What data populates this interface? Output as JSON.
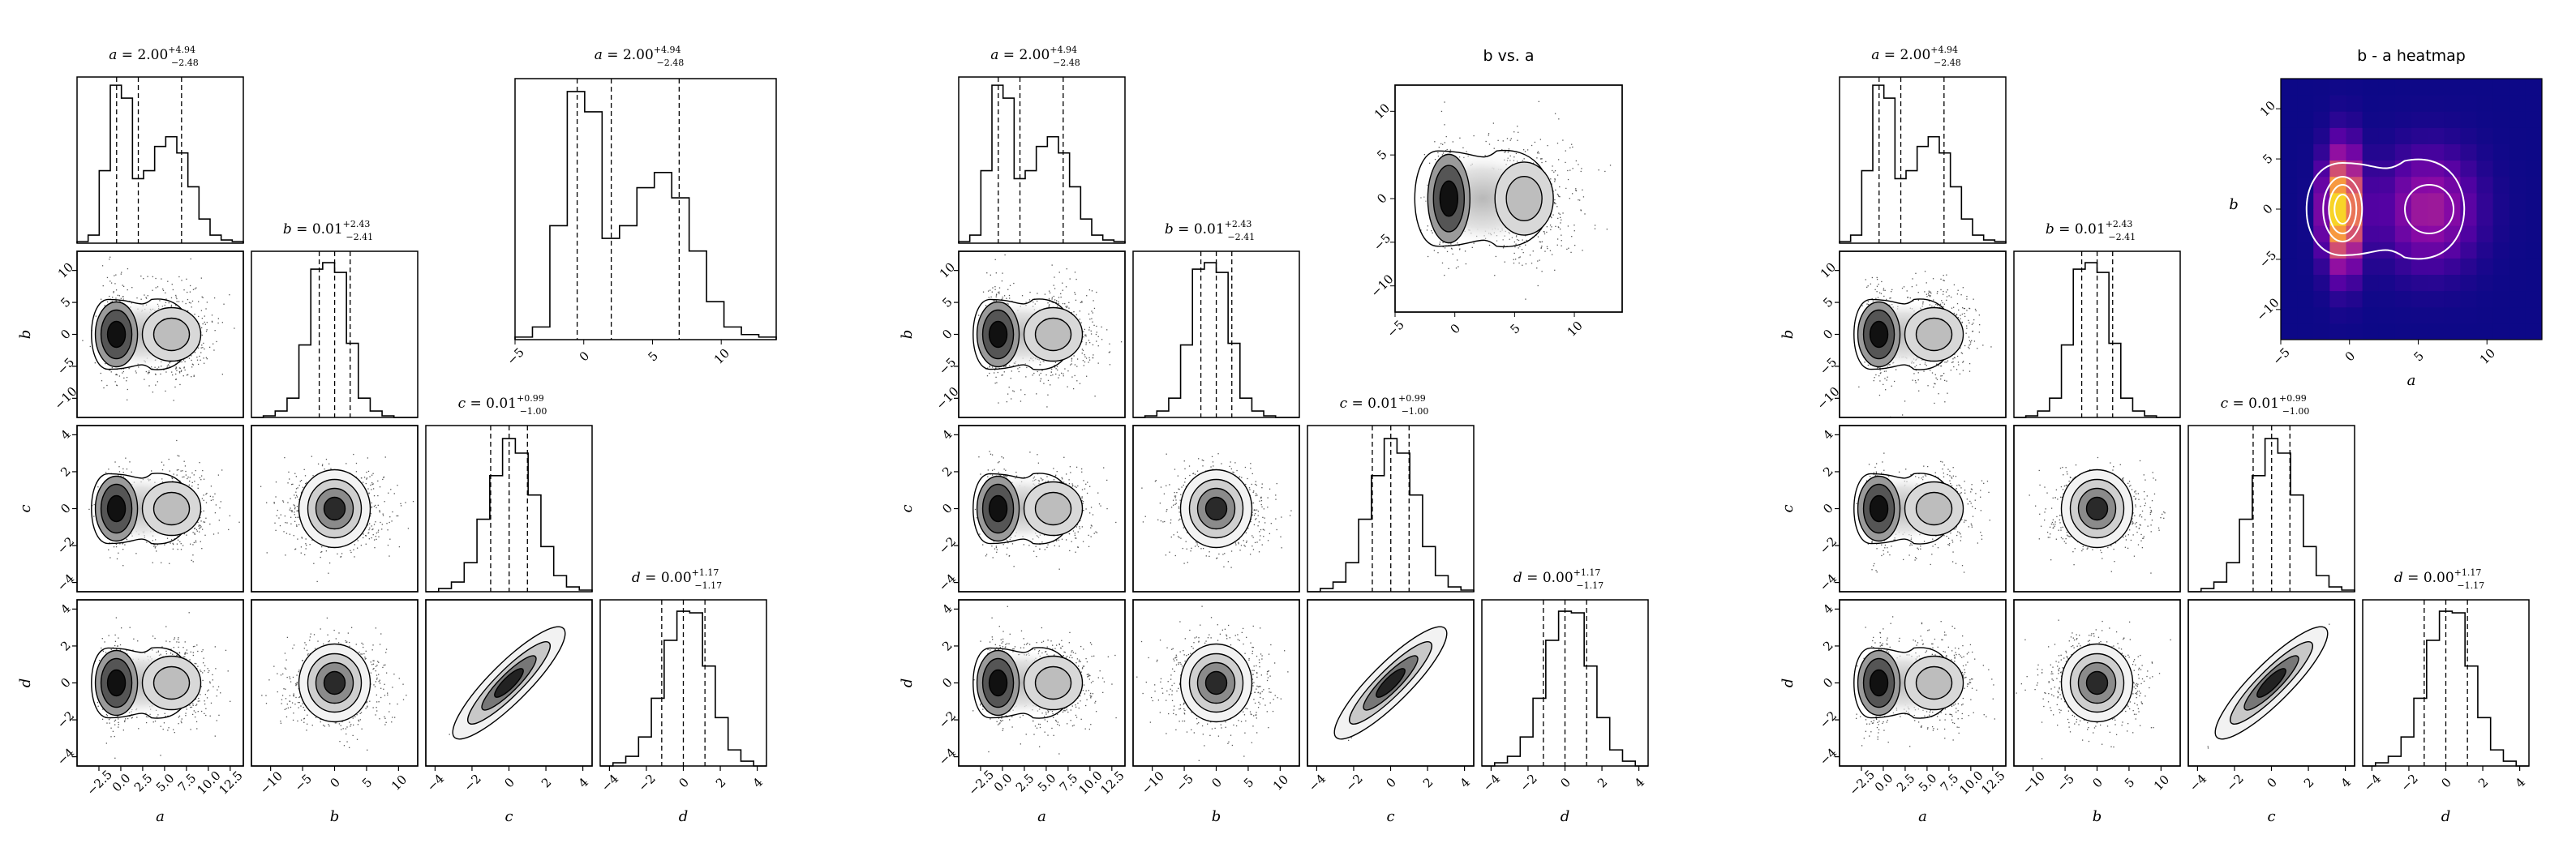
{
  "chart_data": [
    {
      "type": "corner",
      "panel": "left",
      "parameters": [
        "a",
        "b",
        "c",
        "d"
      ],
      "axis_ranges": {
        "a": [
          -5,
          14
        ],
        "b": [
          -13,
          13
        ],
        "c": [
          -4.5,
          4.5
        ],
        "d": [
          -4.5,
          4.5
        ]
      },
      "ticks": {
        "a": [
          "−2.5",
          "0.0",
          "2.5",
          "5.0",
          "7.5",
          "10.0",
          "12.5"
        ],
        "b": [
          "−10",
          "−5",
          "0",
          "5",
          "10"
        ],
        "c": [
          "−4",
          "−2",
          "0",
          "2",
          "4"
        ],
        "d": [
          "−4",
          "−2",
          "0",
          "2",
          "4"
        ]
      },
      "titles": [
        "a = 2.00 +4.94 −2.48",
        "b = 0.01 +2.43 −2.41",
        "c = 0.01 +0.99 −1.00",
        "d = 0.00 +1.17 −1.17"
      ],
      "quantiles": {
        "a": [
          -0.48,
          2.0,
          6.94
        ],
        "b": [
          -2.4,
          0.01,
          2.44
        ],
        "c": [
          -0.99,
          0.01,
          1.0
        ],
        "d": [
          -1.17,
          0.0,
          1.17
        ]
      },
      "marginals": {
        "a": {
          "bins": [
            -5,
            14
          ],
          "counts": [
            0.01,
            0.05,
            0.45,
            0.98,
            0.9,
            0.4,
            0.45,
            0.6,
            0.66,
            0.56,
            0.35,
            0.15,
            0.05,
            0.02,
            0.01
          ]
        },
        "b": {
          "bins": [
            -13,
            13
          ],
          "counts": [
            0.0,
            0.01,
            0.04,
            0.12,
            0.45,
            0.92,
            0.96,
            0.9,
            0.46,
            0.12,
            0.04,
            0.01,
            0.0,
            0.0
          ]
        },
        "c": {
          "bins": [
            -4.5,
            4.5
          ],
          "counts": [
            0.0,
            0.02,
            0.06,
            0.18,
            0.45,
            0.72,
            0.95,
            0.86,
            0.6,
            0.28,
            0.1,
            0.03,
            0.01
          ]
        },
        "d": {
          "bins": [
            -4.5,
            4.5
          ],
          "counts": [
            0.0,
            0.02,
            0.06,
            0.18,
            0.42,
            0.78,
            0.96,
            0.95,
            0.62,
            0.3,
            0.1,
            0.03,
            0.0
          ]
        }
      },
      "inset": {
        "type": "histogram",
        "x": "a",
        "title": "a = 2.00 +4.94 −2.48",
        "xticks": [
          "−5",
          "0",
          "5",
          "10"
        ]
      }
    },
    {
      "type": "corner",
      "panel": "middle",
      "parameters": [
        "a",
        "b",
        "c",
        "d"
      ],
      "titles": [
        "a = 2.00 +4.94 −2.48",
        "b = 0.01 +2.43 −2.41",
        "c = 0.01 +0.99 −1.00",
        "d = 0.00 +1.17 −1.17"
      ],
      "inset": {
        "type": "scatter_contour",
        "x": "a",
        "y": "b",
        "title": "b vs. a",
        "xticks": [
          "−5",
          "0",
          "5",
          "10"
        ],
        "yticks": [
          "−10",
          "−5",
          "0",
          "5",
          "10"
        ]
      }
    },
    {
      "type": "corner",
      "panel": "right",
      "parameters": [
        "a",
        "b",
        "c",
        "d"
      ],
      "titles": [
        "a = 2.00 +4.94 −2.48",
        "b = 0.01 +2.43 −2.41",
        "c = 0.01 +0.99 −1.00",
        "d = 0.00 +1.17 −1.17"
      ],
      "inset": {
        "type": "heatmap",
        "x": "a",
        "y": "b",
        "title": "b - a heatmap",
        "xlabel": "a",
        "ylabel": "b",
        "xticks": [
          "−5",
          "0",
          "5",
          "10"
        ],
        "yticks": [
          "−10",
          "−5",
          "0",
          "5",
          "10"
        ]
      }
    }
  ]
}
